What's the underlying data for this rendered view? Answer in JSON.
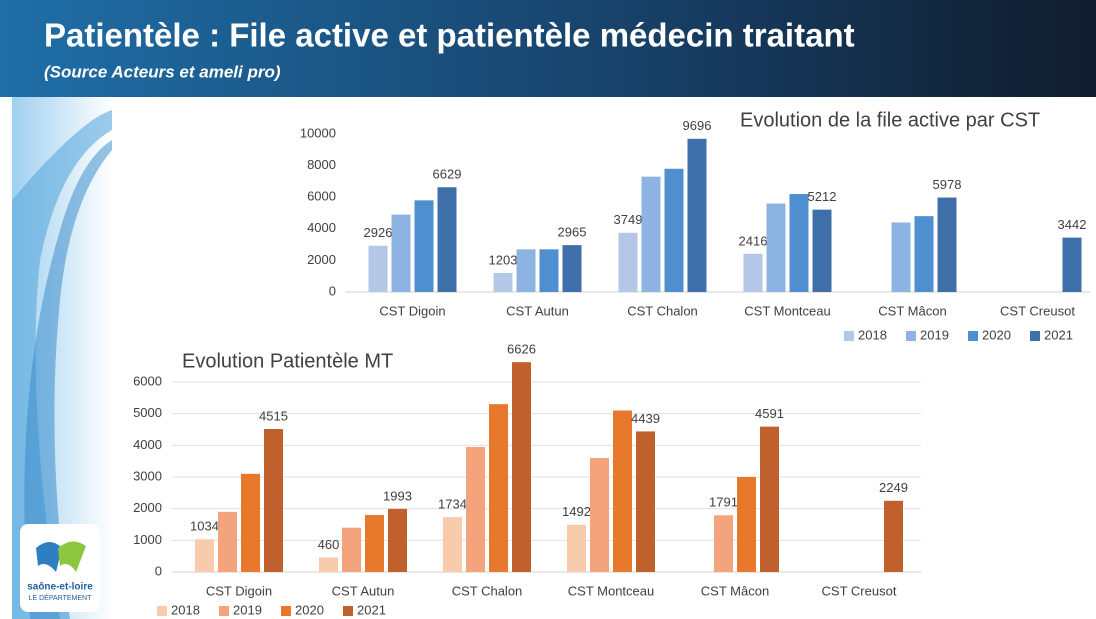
{
  "header": {
    "title": "Patientèle : File active et patientèle médecin traitant",
    "subtitle": "(Source Acteurs et ameli pro)"
  },
  "logo": {
    "name": "saône-et-loire",
    "tagline": "LE DÉPARTEMENT"
  },
  "chart_data": [
    {
      "type": "bar",
      "title": "Evolution de la file active par CST",
      "categories": [
        "CST Digoin",
        "CST Autun",
        "CST Chalon",
        "CST Montceau",
        "CST Mâcon",
        "CST Creusot"
      ],
      "series": [
        {
          "name": "2018",
          "color": "#b4c7e7",
          "values": [
            2926,
            1203,
            3749,
            2416,
            null,
            null
          ],
          "value_labels": [
            "2926",
            "1203",
            "3749",
            "2416",
            null,
            null
          ]
        },
        {
          "name": "2019",
          "color": "#8db3e2",
          "values": [
            4900,
            2700,
            7300,
            5600,
            4400,
            null
          ],
          "value_labels": [
            null,
            null,
            null,
            null,
            null,
            null
          ]
        },
        {
          "name": "2020",
          "color": "#4f8fcf",
          "values": [
            5800,
            2700,
            7800,
            6200,
            4800,
            null
          ],
          "value_labels": [
            null,
            null,
            null,
            null,
            null,
            null
          ]
        },
        {
          "name": "2021",
          "color": "#3e6fa8",
          "values": [
            6629,
            2965,
            9696,
            5212,
            5978,
            3442
          ],
          "value_labels": [
            "6629",
            "2965",
            "9696",
            "5212",
            "5978",
            "3442"
          ]
        }
      ],
      "ylim": [
        0,
        10000
      ],
      "yticks": [
        0,
        2000,
        4000,
        6000,
        8000,
        10000
      ],
      "grid": false,
      "legend": "bottom-right"
    },
    {
      "type": "bar",
      "title": "Evolution Patientèle MT",
      "categories": [
        "CST Digoin",
        "CST Autun",
        "CST Chalon",
        "CST Montceau",
        "CST Mâcon",
        "CST Creusot"
      ],
      "series": [
        {
          "name": "2018",
          "color": "#f8cbad",
          "values": [
            1034,
            460,
            1734,
            1492,
            null,
            null
          ],
          "value_labels": [
            "1034",
            "460",
            "1734",
            "1492",
            null,
            null
          ]
        },
        {
          "name": "2019",
          "color": "#f4a47c",
          "values": [
            1900,
            1400,
            3950,
            3600,
            1791,
            null
          ],
          "value_labels": [
            null,
            null,
            null,
            null,
            "1791",
            null
          ]
        },
        {
          "name": "2020",
          "color": "#e8782c",
          "values": [
            3100,
            1800,
            5300,
            5100,
            3000,
            null
          ],
          "value_labels": [
            null,
            null,
            null,
            null,
            null,
            null
          ]
        },
        {
          "name": "2021",
          "color": "#c0602c",
          "values": [
            4515,
            1993,
            6626,
            4439,
            4591,
            2249
          ],
          "value_labels": [
            "4515",
            "1993",
            "6626",
            "4439",
            "4591",
            "2249"
          ]
        }
      ],
      "ylim": [
        0,
        6000
      ],
      "yticks": [
        0,
        1000,
        2000,
        3000,
        4000,
        5000,
        6000
      ],
      "grid": true,
      "legend": "bottom-left"
    }
  ]
}
